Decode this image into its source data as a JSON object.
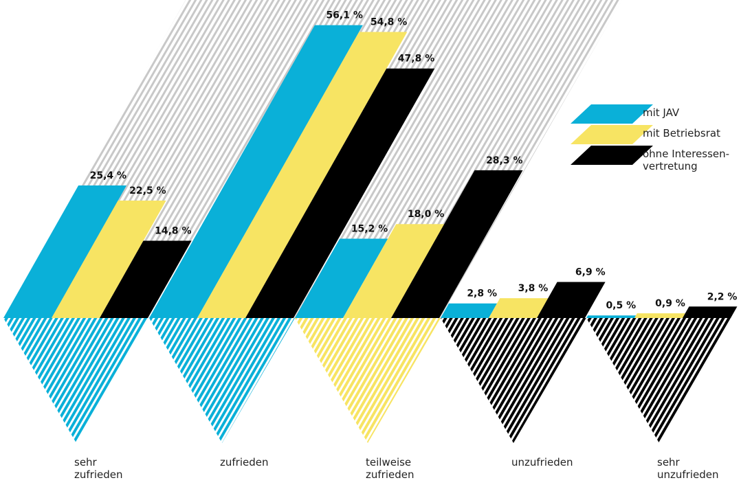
{
  "chart_data": {
    "type": "bar",
    "categories": [
      "sehr zufrieden",
      "zufrieden",
      "teilweise zufrieden",
      "unzufrieden",
      "sehr unzufrieden"
    ],
    "series": [
      {
        "name": "mit JAV",
        "color": "#0ab0d8",
        "values": [
          25.4,
          56.1,
          15.2,
          2.8,
          0.5
        ],
        "value_labels": [
          "25,4 %",
          "56,1 %",
          "15,2 %",
          "2,8 %",
          "0,5 %"
        ]
      },
      {
        "name": "mit Betriebsrat",
        "color": "#f7e463",
        "values": [
          22.5,
          54.8,
          18.0,
          3.8,
          0.9
        ],
        "value_labels": [
          "22,5 %",
          "54,8 %",
          "18,0 %",
          "3,8 %",
          "0,9 %"
        ]
      },
      {
        "name": "ohne Interessen-\nvertretung",
        "color": "#000000",
        "values": [
          14.8,
          47.8,
          28.3,
          6.9,
          2.2
        ],
        "value_labels": [
          "14,8 %",
          "47,8 %",
          "28,3 %",
          "6,9 %",
          "2,2 %"
        ]
      }
    ]
  }
}
